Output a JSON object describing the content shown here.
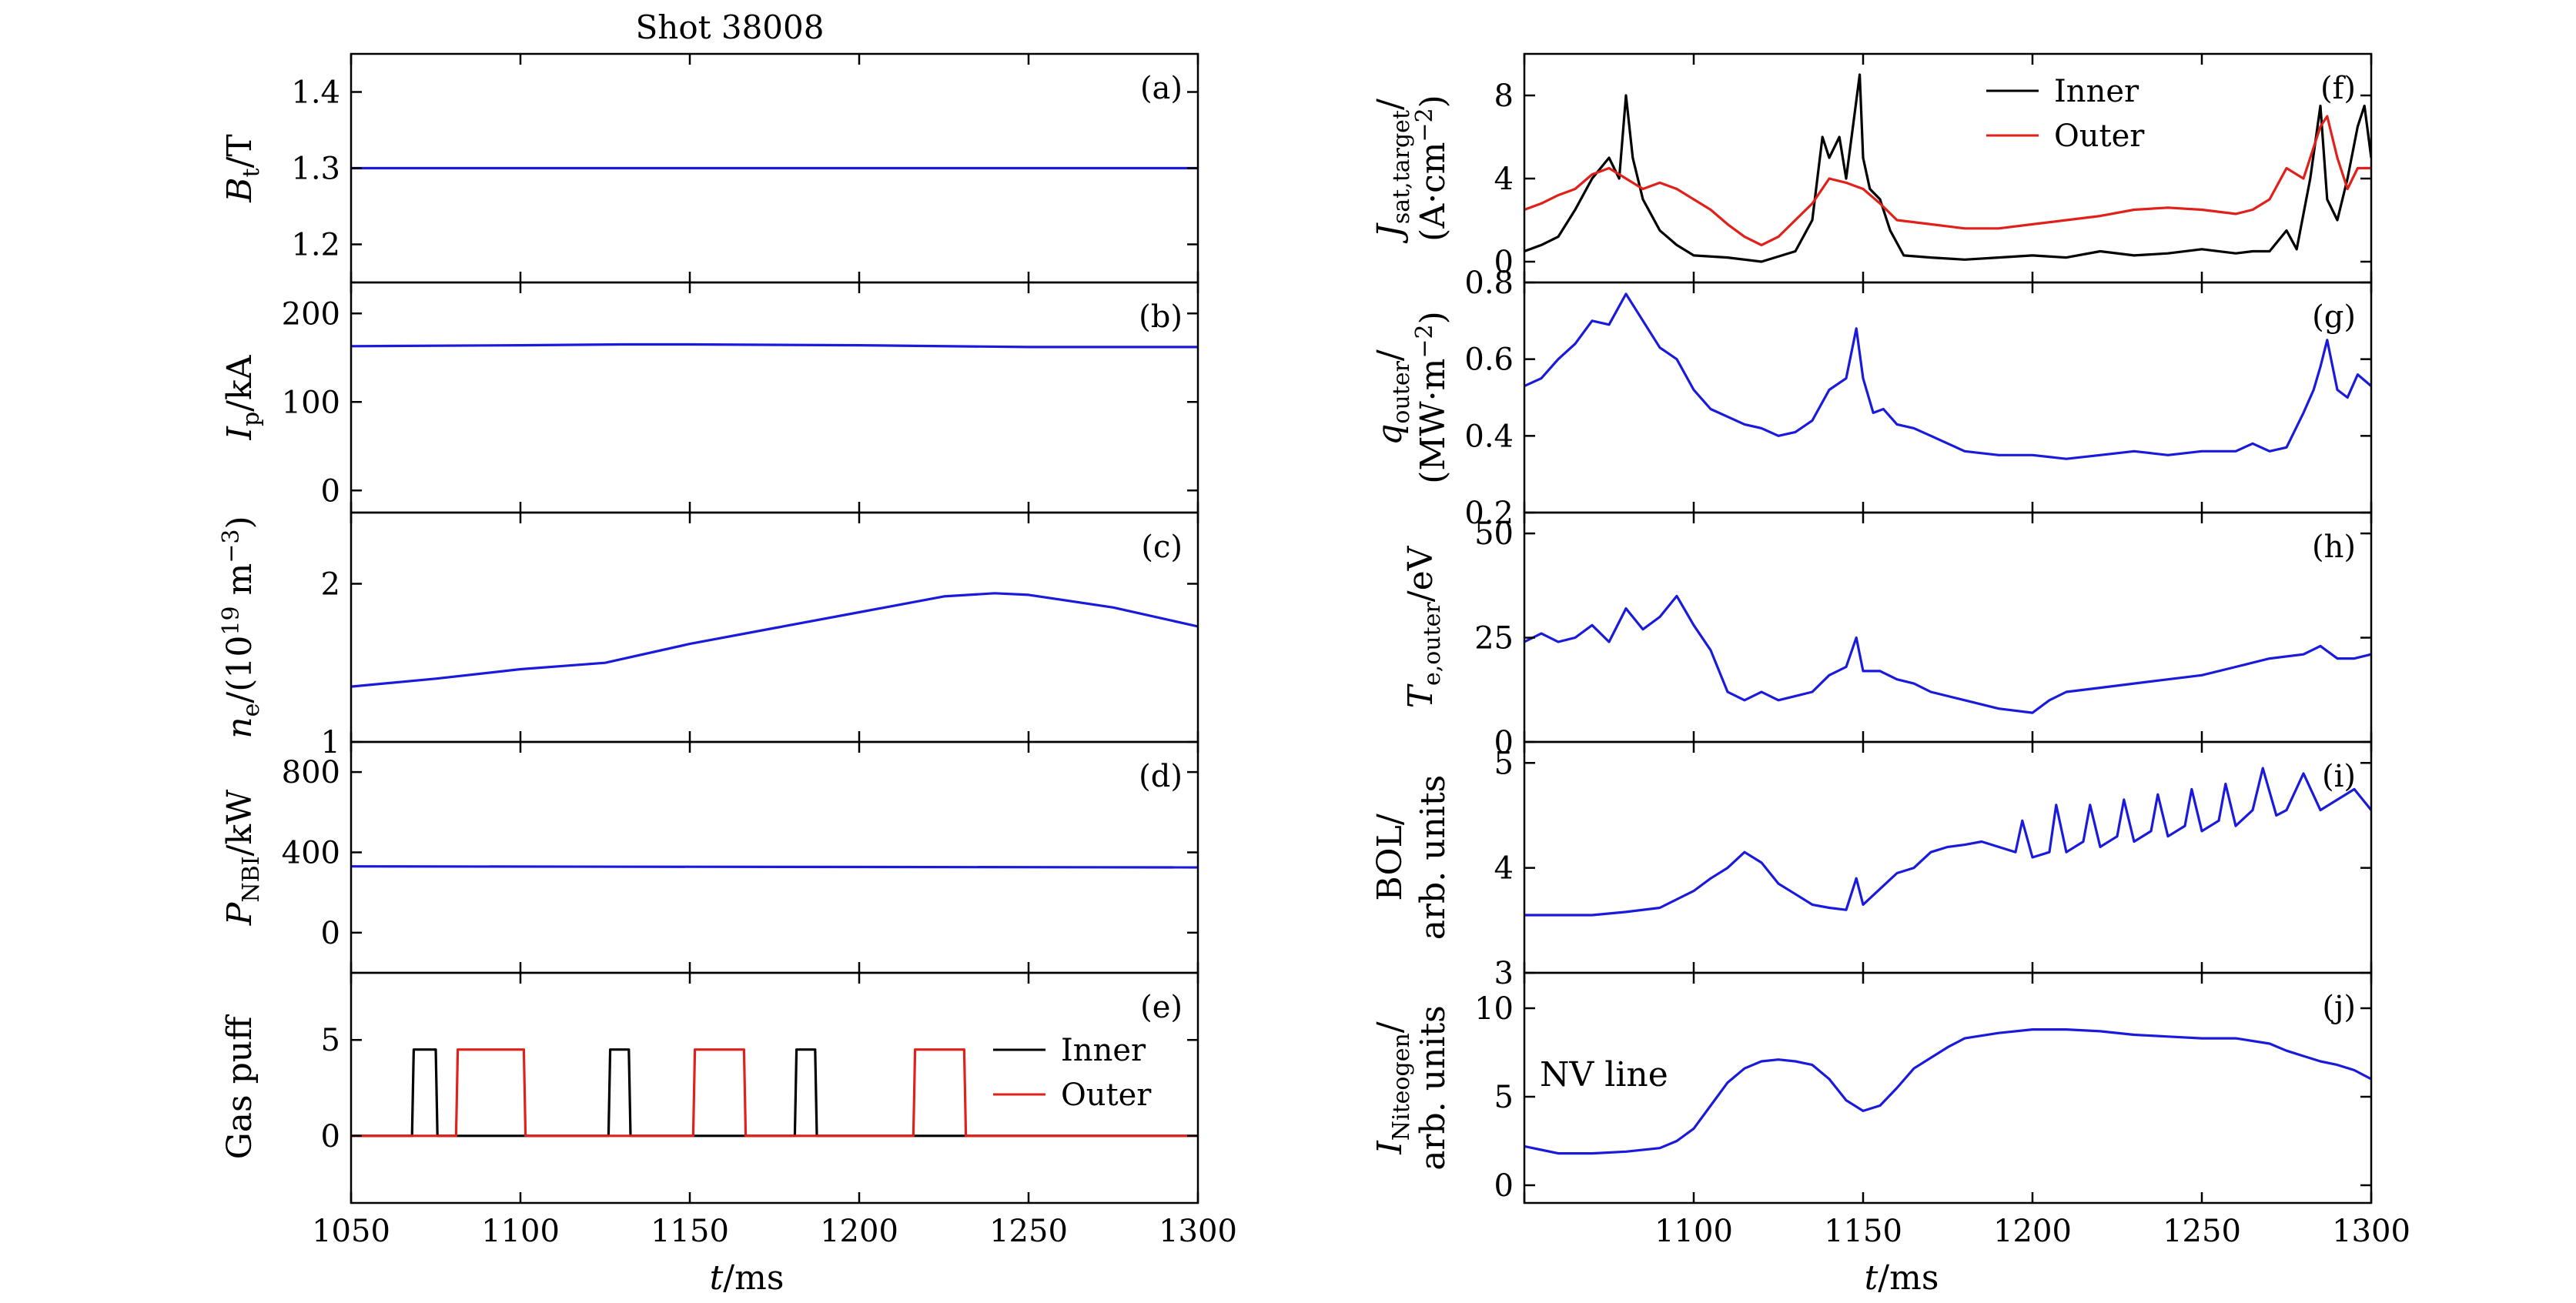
{
  "title": "Shot 38008",
  "xlabel": {
    "var": "t",
    "unit": "/ms"
  },
  "legend": {
    "inner": "Inner",
    "outer": "Outer"
  },
  "colors": {
    "blue": "#1a1adc",
    "black": "#000000",
    "red": "#e0201a"
  },
  "chart_data": [
    {
      "id": "a",
      "type": "line",
      "panel_label": "(a)",
      "column": "left",
      "ylabel": {
        "sym": "B",
        "sub": "t",
        "rest": "/T"
      },
      "xlim": [
        1050,
        1300
      ],
      "ylim": [
        1.15,
        1.45
      ],
      "yticks": [
        1.2,
        1.3,
        1.4
      ],
      "ytick_labels": [
        "1.2",
        "1.3",
        "1.4"
      ],
      "series": [
        {
          "name": "Bt",
          "color": "blue",
          "x": [
            1050,
            1300
          ],
          "y": [
            1.3,
            1.3
          ]
        }
      ]
    },
    {
      "id": "b",
      "type": "line",
      "panel_label": "(b)",
      "column": "left",
      "ylabel": {
        "sym": "I",
        "sub": "p",
        "rest": "/kA"
      },
      "xlim": [
        1050,
        1300
      ],
      "ylim": [
        -25,
        235
      ],
      "yticks": [
        0,
        100,
        200
      ],
      "ytick_labels": [
        "0",
        "100",
        "200"
      ],
      "series": [
        {
          "name": "Ip",
          "color": "blue",
          "x": [
            1050,
            1100,
            1130,
            1150,
            1200,
            1250,
            1300
          ],
          "y": [
            163,
            164,
            165,
            165,
            164,
            162,
            162
          ]
        }
      ]
    },
    {
      "id": "c",
      "type": "line",
      "panel_label": "(c)",
      "column": "left",
      "ylabel": {
        "sym": "n",
        "sub": "e",
        "rest": "/(10",
        "sup": "19",
        "rest2": " m",
        "sup2": "−3",
        "rest3": ")"
      },
      "xlim": [
        1050,
        1300
      ],
      "ylim": [
        1.0,
        2.45
      ],
      "yticks": [
        1,
        2
      ],
      "ytick_labels": [
        "1",
        "2"
      ],
      "series": [
        {
          "name": "ne",
          "color": "blue",
          "x": [
            1050,
            1075,
            1100,
            1125,
            1150,
            1175,
            1200,
            1225,
            1240,
            1250,
            1275,
            1300
          ],
          "y": [
            1.35,
            1.4,
            1.46,
            1.5,
            1.62,
            1.72,
            1.82,
            1.92,
            1.94,
            1.93,
            1.85,
            1.73
          ]
        }
      ]
    },
    {
      "id": "d",
      "type": "line",
      "panel_label": "(d)",
      "column": "left",
      "ylabel": {
        "sym": "P",
        "sub": "NBI",
        "rest": "/kW"
      },
      "xlim": [
        1050,
        1300
      ],
      "ylim": [
        -200,
        950
      ],
      "yticks": [
        0,
        400,
        800
      ],
      "ytick_labels": [
        "0",
        "400",
        "800"
      ],
      "series": [
        {
          "name": "PNBI",
          "color": "blue",
          "x": [
            1050,
            1300
          ],
          "y": [
            330,
            325
          ]
        }
      ]
    },
    {
      "id": "e",
      "type": "line",
      "panel_label": "(e)",
      "column": "left",
      "ylabel": {
        "text": "Gas puff"
      },
      "xlim": [
        1050,
        1300
      ],
      "ylim": [
        -3.5,
        8.5
      ],
      "yticks": [
        0,
        5
      ],
      "ytick_labels": [
        "0",
        "5"
      ],
      "xticks": [
        1050,
        1100,
        1150,
        1200,
        1250,
        1300
      ],
      "xtick_labels": [
        "1050",
        "1100",
        "1150",
        "1200",
        "1250",
        "1300"
      ],
      "legend": true,
      "series": [
        {
          "name": "Inner",
          "color": "black",
          "x": [
            1050,
            1068,
            1068.5,
            1075,
            1075.5,
            1126,
            1126.5,
            1132,
            1132.5,
            1181,
            1181.5,
            1187,
            1187.5,
            1300
          ],
          "y": [
            0,
            0,
            4.5,
            4.5,
            0,
            0,
            4.5,
            4.5,
            0,
            0,
            4.5,
            4.5,
            0,
            0
          ]
        },
        {
          "name": "Outer",
          "color": "red",
          "x": [
            1050,
            1081,
            1081.5,
            1101,
            1101.5,
            1151,
            1151.5,
            1166,
            1166.5,
            1216,
            1216.5,
            1231,
            1231.5,
            1300
          ],
          "y": [
            0,
            0,
            4.5,
            4.5,
            0,
            0,
            4.5,
            4.5,
            0,
            0,
            4.5,
            4.5,
            0,
            0
          ]
        }
      ]
    },
    {
      "id": "f",
      "type": "line",
      "panel_label": "(f)",
      "column": "right",
      "ylabel": {
        "sym": "J",
        "sub": "sat,target",
        "rest": "/",
        "line2": "(A·cm",
        "line2sup": "−2",
        "line2end": ")"
      },
      "xlim": [
        1050,
        1300
      ],
      "ylim": [
        -1,
        10
      ],
      "yticks": [
        0,
        4,
        8
      ],
      "ytick_labels": [
        "0",
        "4",
        "8"
      ],
      "legend": true,
      "series": [
        {
          "name": "Inner",
          "color": "black",
          "x": [
            1050,
            1055,
            1060,
            1065,
            1070,
            1075,
            1078,
            1080,
            1082,
            1085,
            1090,
            1095,
            1100,
            1110,
            1120,
            1130,
            1135,
            1138,
            1140,
            1143,
            1145,
            1147,
            1149,
            1150,
            1152,
            1155,
            1158,
            1162,
            1170,
            1180,
            1190,
            1200,
            1210,
            1220,
            1230,
            1240,
            1250,
            1260,
            1265,
            1270,
            1275,
            1278,
            1282,
            1285,
            1287,
            1290,
            1293,
            1296,
            1298,
            1300
          ],
          "y": [
            0.5,
            0.8,
            1.2,
            2.5,
            4.0,
            5.0,
            4.0,
            8.0,
            5.0,
            3.0,
            1.5,
            0.8,
            0.3,
            0.2,
            0.0,
            0.5,
            2.0,
            6.0,
            5.0,
            6.0,
            4.0,
            6.5,
            9.0,
            5.0,
            3.5,
            3.0,
            1.5,
            0.3,
            0.2,
            0.1,
            0.2,
            0.3,
            0.2,
            0.5,
            0.3,
            0.4,
            0.6,
            0.4,
            0.5,
            0.5,
            1.5,
            0.6,
            4.0,
            7.5,
            3.0,
            2.0,
            4.0,
            6.5,
            7.5,
            5.0
          ]
        },
        {
          "name": "Outer",
          "color": "red",
          "x": [
            1050,
            1055,
            1060,
            1065,
            1070,
            1075,
            1080,
            1085,
            1090,
            1095,
            1100,
            1105,
            1110,
            1115,
            1120,
            1125,
            1130,
            1135,
            1140,
            1145,
            1150,
            1155,
            1160,
            1170,
            1180,
            1190,
            1200,
            1210,
            1220,
            1230,
            1240,
            1250,
            1260,
            1265,
            1270,
            1275,
            1280,
            1285,
            1287,
            1290,
            1293,
            1296,
            1300
          ],
          "y": [
            2.5,
            2.8,
            3.2,
            3.5,
            4.2,
            4.5,
            4.0,
            3.5,
            3.8,
            3.5,
            3.0,
            2.5,
            1.8,
            1.2,
            0.8,
            1.2,
            2.0,
            2.8,
            4.0,
            3.8,
            3.5,
            2.8,
            2.0,
            1.8,
            1.6,
            1.6,
            1.8,
            2.0,
            2.2,
            2.5,
            2.6,
            2.5,
            2.3,
            2.5,
            3.0,
            4.5,
            4.0,
            6.5,
            7.0,
            5.0,
            3.5,
            4.5,
            4.5
          ]
        }
      ]
    },
    {
      "id": "g",
      "type": "line",
      "panel_label": "(g)",
      "column": "right",
      "ylabel": {
        "sym": "q",
        "sub": "outer",
        "rest": "/",
        "line2": "(MW·m",
        "line2sup": "−2",
        "line2end": ")"
      },
      "xlim": [
        1050,
        1300
      ],
      "ylim": [
        0.2,
        0.8
      ],
      "yticks": [
        0.2,
        0.4,
        0.6,
        0.8
      ],
      "ytick_labels": [
        "0.2",
        "0.4",
        "0.6",
        "0.8"
      ],
      "series": [
        {
          "name": "qouter",
          "color": "blue",
          "x": [
            1050,
            1055,
            1060,
            1065,
            1070,
            1075,
            1080,
            1085,
            1090,
            1095,
            1100,
            1105,
            1110,
            1115,
            1120,
            1125,
            1130,
            1135,
            1140,
            1145,
            1148,
            1150,
            1153,
            1156,
            1160,
            1165,
            1170,
            1175,
            1180,
            1190,
            1200,
            1210,
            1220,
            1230,
            1240,
            1250,
            1260,
            1265,
            1270,
            1275,
            1280,
            1283,
            1285,
            1287,
            1290,
            1293,
            1296,
            1300
          ],
          "y": [
            0.53,
            0.55,
            0.6,
            0.64,
            0.7,
            0.69,
            0.77,
            0.7,
            0.63,
            0.6,
            0.52,
            0.47,
            0.45,
            0.43,
            0.42,
            0.4,
            0.41,
            0.44,
            0.52,
            0.55,
            0.68,
            0.55,
            0.46,
            0.47,
            0.43,
            0.42,
            0.4,
            0.38,
            0.36,
            0.35,
            0.35,
            0.34,
            0.35,
            0.36,
            0.35,
            0.36,
            0.36,
            0.38,
            0.36,
            0.37,
            0.46,
            0.52,
            0.58,
            0.65,
            0.52,
            0.5,
            0.56,
            0.53
          ]
        }
      ]
    },
    {
      "id": "h",
      "type": "line",
      "panel_label": "(h)",
      "column": "right",
      "ylabel": {
        "sym": "T",
        "sub": "e,outer",
        "rest": "/eV"
      },
      "xlim": [
        1050,
        1300
      ],
      "ylim": [
        0,
        55
      ],
      "yticks": [
        0,
        25,
        50
      ],
      "ytick_labels": [
        "0",
        "25",
        "50"
      ],
      "series": [
        {
          "name": "Te",
          "color": "blue",
          "x": [
            1050,
            1055,
            1060,
            1065,
            1070,
            1075,
            1080,
            1085,
            1090,
            1095,
            1100,
            1105,
            1110,
            1115,
            1120,
            1125,
            1130,
            1135,
            1140,
            1145,
            1148,
            1150,
            1155,
            1160,
            1165,
            1170,
            1180,
            1190,
            1200,
            1205,
            1210,
            1220,
            1230,
            1240,
            1250,
            1260,
            1270,
            1280,
            1285,
            1290,
            1295,
            1300
          ],
          "y": [
            24,
            26,
            24,
            25,
            28,
            24,
            32,
            27,
            30,
            35,
            28,
            22,
            12,
            10,
            12,
            10,
            11,
            12,
            16,
            18,
            25,
            17,
            17,
            15,
            14,
            12,
            10,
            8,
            7,
            10,
            12,
            13,
            14,
            15,
            16,
            18,
            20,
            21,
            23,
            20,
            20,
            21
          ]
        }
      ]
    },
    {
      "id": "i",
      "type": "line",
      "panel_label": "(i)",
      "column": "right",
      "ylabel": {
        "text": "BOL/",
        "line2": "arb. units"
      },
      "xlim": [
        1050,
        1300
      ],
      "ylim": [
        3,
        5.2
      ],
      "yticks": [
        3,
        4,
        5
      ],
      "ytick_labels": [
        "3",
        "4",
        "5"
      ],
      "series": [
        {
          "name": "BOL",
          "color": "blue",
          "x": [
            1050,
            1060,
            1070,
            1080,
            1090,
            1100,
            1105,
            1110,
            1115,
            1120,
            1125,
            1130,
            1135,
            1140,
            1145,
            1148,
            1150,
            1155,
            1160,
            1165,
            1170,
            1175,
            1180,
            1185,
            1190,
            1195,
            1197,
            1200,
            1205,
            1207,
            1210,
            1215,
            1217,
            1220,
            1225,
            1227,
            1230,
            1235,
            1237,
            1240,
            1245,
            1247,
            1250,
            1255,
            1257,
            1260,
            1265,
            1268,
            1272,
            1275,
            1280,
            1285,
            1290,
            1295,
            1300
          ],
          "y": [
            3.55,
            3.55,
            3.55,
            3.58,
            3.62,
            3.78,
            3.9,
            4.0,
            4.15,
            4.05,
            3.85,
            3.75,
            3.65,
            3.62,
            3.6,
            3.9,
            3.65,
            3.8,
            3.95,
            4.0,
            4.15,
            4.2,
            4.22,
            4.25,
            4.2,
            4.15,
            4.45,
            4.1,
            4.15,
            4.6,
            4.15,
            4.25,
            4.6,
            4.2,
            4.3,
            4.65,
            4.25,
            4.35,
            4.7,
            4.3,
            4.4,
            4.75,
            4.35,
            4.45,
            4.8,
            4.4,
            4.55,
            4.95,
            4.5,
            4.55,
            4.9,
            4.55,
            4.65,
            4.75,
            4.55
          ]
        }
      ]
    },
    {
      "id": "j",
      "type": "line",
      "panel_label": "(j)",
      "column": "right",
      "ylabel": {
        "sym": "I",
        "sub": "Niteogen",
        "rest": "/",
        "line2": "arb. units"
      },
      "annotation": "NV line",
      "xlim": [
        1050,
        1300
      ],
      "ylim": [
        -1,
        12
      ],
      "yticks": [
        0,
        5,
        10
      ],
      "ytick_labels": [
        "0",
        "5",
        "10"
      ],
      "xticks": [
        1100,
        1150,
        1200,
        1250,
        1300
      ],
      "xtick_labels": [
        "1100",
        "1150",
        "1200",
        "1250",
        "1300"
      ],
      "series": [
        {
          "name": "INV",
          "color": "blue",
          "x": [
            1050,
            1055,
            1060,
            1070,
            1080,
            1090,
            1095,
            1100,
            1105,
            1110,
            1115,
            1120,
            1125,
            1130,
            1135,
            1140,
            1145,
            1150,
            1155,
            1160,
            1165,
            1170,
            1175,
            1180,
            1190,
            1200,
            1210,
            1220,
            1230,
            1240,
            1250,
            1260,
            1270,
            1275,
            1280,
            1285,
            1290,
            1295,
            1300
          ],
          "y": [
            2.2,
            2.0,
            1.8,
            1.8,
            1.9,
            2.1,
            2.5,
            3.2,
            4.5,
            5.8,
            6.6,
            7.0,
            7.1,
            7.0,
            6.8,
            6.0,
            4.8,
            4.2,
            4.5,
            5.5,
            6.6,
            7.2,
            7.8,
            8.3,
            8.6,
            8.8,
            8.8,
            8.7,
            8.5,
            8.4,
            8.3,
            8.3,
            8.0,
            7.6,
            7.3,
            7.0,
            6.8,
            6.5,
            6.0
          ]
        }
      ]
    }
  ]
}
